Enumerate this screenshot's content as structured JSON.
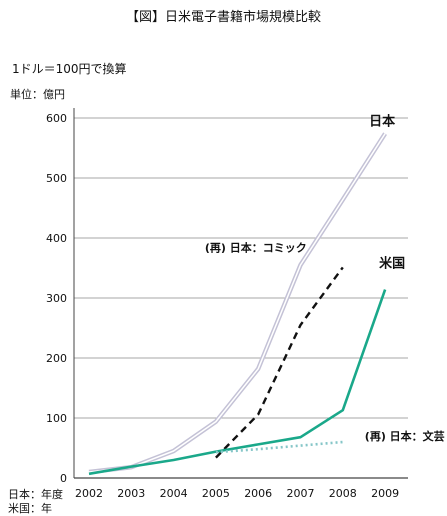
{
  "chart_data": {
    "type": "line",
    "title": "【図】日米電子書籍市場規模比較",
    "subtitle": "1ドル＝100円で換算",
    "ylabel": "単位：億円",
    "x": [
      "2002",
      "2003",
      "2004",
      "2005",
      "2006",
      "2007",
      "2008",
      "2009"
    ],
    "ylim": [
      0,
      600
    ],
    "yticks": [
      0,
      100,
      200,
      300,
      400,
      500,
      600
    ],
    "grid": true,
    "series": [
      {
        "name": "日本",
        "color": "#c4c2d6",
        "style": "double",
        "values": [
          10,
          18,
          45,
          94,
          182,
          355,
          464,
          574
        ]
      },
      {
        "name": "(再) 日本：コミック",
        "color": "#111111",
        "style": "dashed",
        "values": [
          null,
          null,
          null,
          34,
          106,
          255,
          351,
          null
        ]
      },
      {
        "name": "米国",
        "color": "#1aa88a",
        "style": "solid",
        "values": [
          7,
          19,
          30,
          44,
          56,
          68,
          113,
          314
        ]
      },
      {
        "name": "(再) 日本：文芸",
        "color": "#86c6c8",
        "style": "dotted",
        "values": [
          null,
          null,
          null,
          43,
          48,
          54,
          60,
          null
        ]
      }
    ],
    "notes": [
      "日本：年度",
      "米国：年"
    ]
  }
}
